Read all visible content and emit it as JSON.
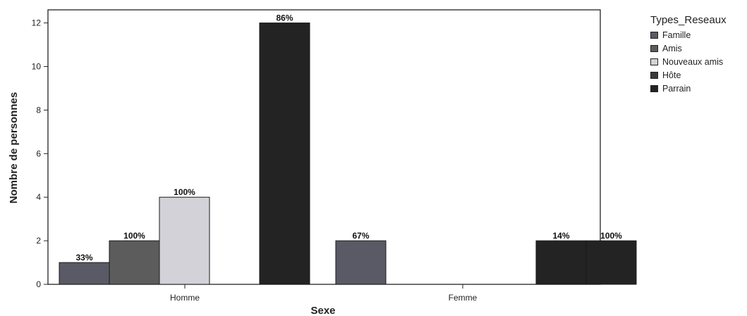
{
  "chart_data": {
    "type": "bar",
    "xlabel": "Sexe",
    "ylabel": "Nombre de personnes",
    "categories": [
      "Homme",
      "Femme"
    ],
    "ylim": [
      0,
      12.6
    ],
    "yticks": [
      "0",
      "2",
      "4",
      "6",
      "8",
      "10",
      "12"
    ],
    "legend_title": "Types_Reseaux",
    "legend_position": "right",
    "grid": false,
    "series": [
      {
        "name": "Famille",
        "color": "#5a5a66",
        "values": [
          1,
          2
        ],
        "labels": [
          "33%",
          "67%"
        ]
      },
      {
        "name": "Amis",
        "color": "#5c5c5c",
        "values": [
          2,
          0
        ],
        "labels": [
          "100%",
          ""
        ]
      },
      {
        "name": "Nouveaux amis",
        "color": "#d2d2d8",
        "values": [
          4,
          0
        ],
        "labels": [
          "100%",
          ""
        ]
      },
      {
        "name": "Hôte",
        "color": "#3a3a3a",
        "values": [
          0,
          0
        ],
        "labels": [
          "",
          ""
        ]
      },
      {
        "name": "Parrain",
        "color": "#232323",
        "values": [
          12,
          2
        ],
        "labels": [
          "86%",
          "14%"
        ]
      },
      {
        "name": "",
        "color": "#232323",
        "values": [
          0,
          2
        ],
        "labels": [
          "",
          "100%"
        ]
      }
    ]
  }
}
